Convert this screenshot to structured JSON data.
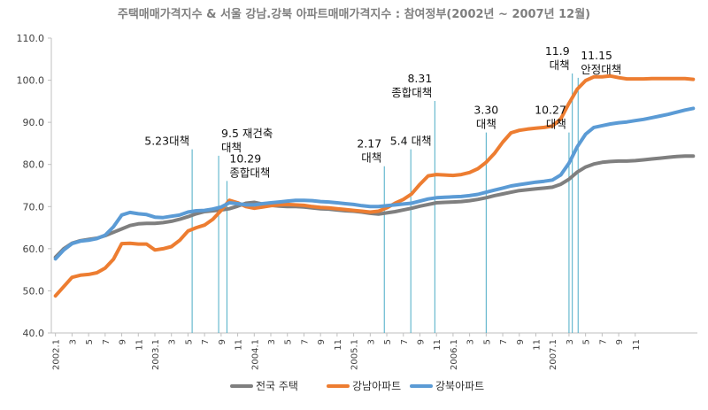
{
  "chart_data": {
    "type": "line",
    "title": "주택매매가격지수 & 서울 강남.강북 아파트매매가격지수 : 참여정부(2002년 ~ 2007년 12월)",
    "xlabel": "",
    "ylabel": "",
    "ylim": [
      40,
      110
    ],
    "yticks": [
      "40.0",
      "50.0",
      "60.0",
      "70.0",
      "80.0",
      "90.0",
      "100.0",
      "110.0"
    ],
    "x_tick_labels": [
      "2002.1",
      "3",
      "5",
      "7",
      "9",
      "11",
      "2003.1",
      "3",
      "5",
      "7",
      "9",
      "11",
      "2004.1",
      "3",
      "5",
      "7",
      "9",
      "11",
      "2005.1",
      "3",
      "5",
      "7",
      "9",
      "11",
      "2006.1",
      "3",
      "5",
      "7",
      "9",
      "11",
      "2007.1",
      "3",
      "5",
      "7",
      "9",
      "11"
    ],
    "grid": false,
    "legend_position": "bottom",
    "series": [
      {
        "name": "전국 주택",
        "color": "#7f7f7f",
        "values": [
          58.0,
          60.0,
          61.3,
          61.9,
          62.2,
          62.5,
          63.1,
          63.9,
          64.7,
          65.5,
          65.9,
          66.0,
          66.0,
          66.2,
          66.5,
          67.0,
          67.6,
          68.3,
          68.8,
          69.0,
          69.2,
          69.5,
          70.1,
          70.8,
          71.0,
          70.6,
          70.3,
          70.1,
          70.0,
          70.0,
          69.9,
          69.7,
          69.5,
          69.4,
          69.2,
          69.0,
          68.9,
          68.7,
          68.4,
          68.2,
          68.5,
          68.8,
          69.2,
          69.6,
          70.1,
          70.5,
          70.9,
          71.0,
          71.1,
          71.2,
          71.4,
          71.7,
          72.1,
          72.6,
          73.0,
          73.4,
          73.8,
          74.0,
          74.2,
          74.4,
          74.6,
          75.3,
          76.5,
          78.2,
          79.4,
          80.1,
          80.5,
          80.7,
          80.8,
          80.8,
          80.9,
          81.1,
          81.3,
          81.5,
          81.7,
          81.9,
          82.0,
          82.0
        ]
      },
      {
        "name": "강남아파트",
        "color": "#ed7d31",
        "values": [
          48.8,
          51.0,
          53.2,
          53.7,
          53.9,
          54.3,
          55.4,
          57.5,
          61.2,
          61.3,
          61.1,
          61.1,
          59.7,
          60.0,
          60.5,
          62.0,
          64.2,
          65.0,
          65.6,
          67.0,
          69.1,
          71.5,
          70.9,
          70.0,
          69.6,
          69.9,
          70.2,
          70.4,
          70.5,
          70.4,
          70.3,
          70.0,
          69.8,
          69.7,
          69.5,
          69.3,
          69.1,
          68.9,
          68.7,
          68.9,
          69.7,
          70.8,
          71.7,
          73.0,
          75.3,
          77.3,
          77.6,
          77.5,
          77.4,
          77.6,
          78.1,
          79.0,
          80.5,
          82.6,
          85.3,
          87.5,
          88.1,
          88.4,
          88.6,
          88.8,
          89.1,
          90.8,
          94.5,
          97.9,
          99.9,
          100.8,
          100.8,
          101.0,
          100.6,
          100.3,
          100.3,
          100.3,
          100.4,
          100.4,
          100.4,
          100.4,
          100.4,
          100.2
        ]
      },
      {
        "name": "강북아파트",
        "color": "#5b9bd5",
        "values": [
          57.6,
          59.7,
          61.2,
          61.8,
          62.0,
          62.4,
          63.2,
          65.2,
          68.0,
          68.6,
          68.3,
          68.1,
          67.5,
          67.4,
          67.7,
          68.0,
          68.7,
          69.0,
          69.1,
          69.4,
          69.9,
          70.9,
          70.7,
          70.4,
          70.4,
          70.7,
          70.9,
          71.1,
          71.3,
          71.5,
          71.5,
          71.4,
          71.2,
          71.1,
          70.9,
          70.7,
          70.5,
          70.2,
          70.0,
          70.0,
          70.2,
          70.4,
          70.6,
          70.8,
          71.3,
          71.8,
          72.1,
          72.2,
          72.3,
          72.4,
          72.6,
          72.9,
          73.4,
          73.9,
          74.4,
          74.9,
          75.2,
          75.5,
          75.8,
          76.0,
          76.3,
          77.5,
          80.3,
          84.2,
          87.2,
          88.8,
          89.2,
          89.6,
          89.9,
          90.1,
          90.4,
          90.7,
          91.1,
          91.5,
          91.9,
          92.4,
          92.9,
          93.3
        ]
      }
    ],
    "annotations": [
      {
        "index": 16.5,
        "lines": [
          "5.23대책"
        ],
        "label_y": 84.0,
        "anchor": "end"
      },
      {
        "index": 19.7,
        "lines": [
          "9.5 재건축",
          "대책"
        ],
        "label_y": 82.5,
        "anchor": "start"
      },
      {
        "index": 20.7,
        "lines": [
          "10.29",
          "종합대책"
        ],
        "label_y": 76.5,
        "anchor": "start"
      },
      {
        "index": 39.7,
        "lines": [
          "2.17",
          "대책"
        ],
        "label_y": 80.0,
        "anchor": "end"
      },
      {
        "index": 42.9,
        "lines": [
          "5.4  대책"
        ],
        "label_y": 84.0,
        "anchor": "middle"
      },
      {
        "index": 45.8,
        "lines": [
          "8.31",
          "종합대책"
        ],
        "label_y": 95.5,
        "anchor": "end"
      },
      {
        "index": 52.0,
        "lines": [
          "3.30",
          "대책"
        ],
        "label_y": 88.0,
        "anchor": "middle"
      },
      {
        "index": 62.0,
        "lines": [
          "10.27",
          "대책"
        ],
        "label_y": 88.0,
        "anchor": "end"
      },
      {
        "index": 62.4,
        "lines": [
          "11.9",
          "대책"
        ],
        "label_y": 102.0,
        "anchor": "end"
      },
      {
        "index": 63.1,
        "lines": [
          "11.15",
          "안정대책"
        ],
        "label_y": 101.0,
        "anchor": "start"
      }
    ]
  }
}
